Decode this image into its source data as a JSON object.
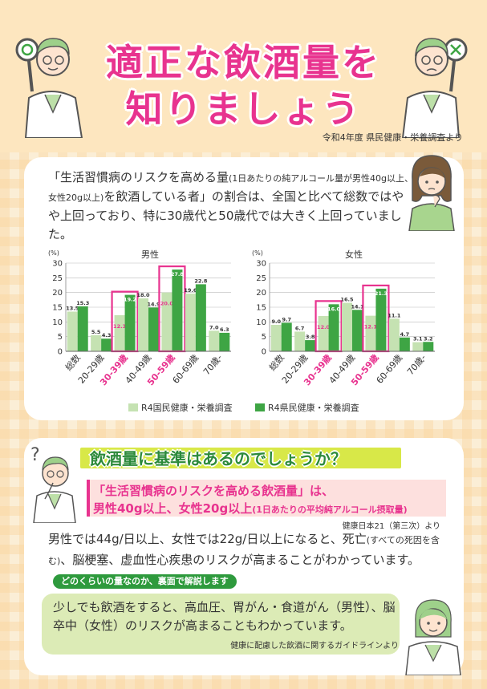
{
  "title": {
    "line1": "適正な飲酒量を",
    "line2": "知りましょう"
  },
  "source_top": "令和4年度 県民健康・栄養調査より",
  "intro": {
    "part1": "「生活習慣病のリスクを高める量",
    "small1": "(1日あたりの純アルコール量が男性40g以上、女性20g以上)",
    "part2": "を飲酒している者」の割合は、全国と比べて総数ではやや上回っており、特に30歳代と50歳代では大きく上回っていました。"
  },
  "colors": {
    "national": "#c5e2b2",
    "prefecture": "#3ea544",
    "highlight": "#e8338f",
    "accent": "#e8338f"
  },
  "legend": {
    "national": "R4国民健康・栄養調査",
    "prefecture": "R4県民健康・栄養調査"
  },
  "chart_data": [
    {
      "type": "bar",
      "title": "男性",
      "ylabel": "(%)",
      "ylim": [
        0,
        30
      ],
      "yticks": [
        "0",
        "5",
        "10",
        "15",
        "20",
        "25",
        "30"
      ],
      "categories": [
        "総数",
        "20-29歳",
        "30-39歳",
        "40-49歳",
        "50-59歳",
        "60-69歳",
        "70歳-"
      ],
      "highlight": [
        "30-39歳",
        "50-59歳"
      ],
      "series": [
        {
          "name": "R4国民健康・栄養調査",
          "values": [
            13.5,
            5.5,
            12.3,
            18.0,
            20.0,
            19.6,
            7.0
          ],
          "labels": [
            "13.5",
            "5.5",
            "12.3",
            "18.0",
            "20.0",
            "19.6",
            "7.0"
          ]
        },
        {
          "name": "R4県民健康・栄養調査",
          "values": [
            15.3,
            4.3,
            19.2,
            14.9,
            27.8,
            22.8,
            6.3
          ],
          "labels": [
            "15.3",
            "4.3",
            "19.2",
            "14.9",
            "27.8",
            "22.8",
            "6.3"
          ]
        }
      ]
    },
    {
      "type": "bar",
      "title": "女性",
      "ylabel": "(%)",
      "ylim": [
        0,
        30
      ],
      "yticks": [
        "0",
        "5",
        "10",
        "15",
        "20",
        "25",
        "30"
      ],
      "categories": [
        "総数",
        "20-29歳",
        "30-39歳",
        "40-49歳",
        "50-59歳",
        "60-69歳",
        "70歳-"
      ],
      "highlight": [
        "30-39歳",
        "50-59歳"
      ],
      "series": [
        {
          "name": "R4国民健康・栄養調査",
          "values": [
            9.0,
            6.7,
            12.0,
            16.5,
            12.1,
            11.1,
            3.1
          ],
          "labels": [
            "9.0",
            "6.7",
            "12.0",
            "16.5",
            "12.1",
            "11.1",
            "3.1"
          ]
        },
        {
          "name": "R4県民健康・栄養調査",
          "values": [
            9.7,
            3.8,
            16.0,
            14.1,
            21.3,
            4.7,
            3.2
          ],
          "labels": [
            "9.7",
            "3.8",
            "16.0",
            "14.1",
            "21.3",
            "4.7",
            "3.2"
          ]
        }
      ]
    }
  ],
  "question": "飲酒量に基準はあるのでしょうか？",
  "definition": {
    "line1": "「生活習慣病のリスクを高める飲酒量」は、",
    "line2": "男性40g以上、女性20g以上",
    "line2_small": "(1日あたりの平均純アルコール摂取量)",
    "source": "健康日本21（第三次）より"
  },
  "body": {
    "part1": "男性では44g/日以上、女性では22g/日以上になると、死亡",
    "small": "(すべての死因を含む)",
    "part2": "、脳梗塞、虚血性心疾患のリスクが高まることがわかっています。",
    "pill": "どのくらいの量なのか、裏面で解説します"
  },
  "note": {
    "text": "少しでも飲酒をすると、高血圧、胃がん・食道がん（男性）、脳卒中（女性）のリスクが高まることもわかっています。",
    "source": "健康に配慮した飲酒に関するガイドラインより"
  }
}
